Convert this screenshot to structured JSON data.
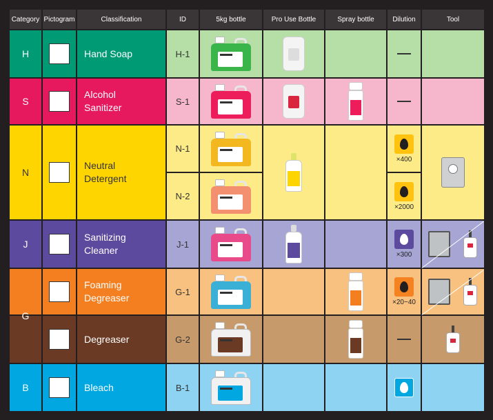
{
  "headers": [
    "Category",
    "Pictogram",
    "Classification",
    "ID",
    "5kg bottle",
    "Pro Use Bottle",
    "Spray bottle",
    "Dilution",
    "Tool"
  ],
  "rows": {
    "h": {
      "category": "H",
      "classification": "Hand Soap",
      "id": "H-1",
      "color": "#009a75",
      "light": "#b5dfa6",
      "jug_color": "#3ab54a"
    },
    "s": {
      "category": "S",
      "classification": "Alcohol\nSanitizer",
      "id": "S-1",
      "color": "#e6185e",
      "light": "#f6b7cd",
      "jug_color": "#ed1c5b"
    },
    "n": {
      "category": "N",
      "classification": "Neutral\nDetergent",
      "id1": "N-1",
      "id2": "N-2",
      "color": "#ffd500",
      "light": "#fdeb88",
      "dilution1": "×400",
      "dilution2": "×2000",
      "jug1_color": "#f3b81f",
      "jug2_color": "#f29070"
    },
    "j": {
      "category": "J",
      "classification": "Sanitizing\nCleaner",
      "id": "J-1",
      "color": "#5b4a9e",
      "light": "#a6a5d4",
      "dilution": "×300",
      "jug_color": "#e84a8a"
    },
    "g1": {
      "classification": "Foaming\nDegreaser",
      "id": "G-1",
      "color": "#f37f21",
      "light": "#f9c17f",
      "dilution": "×20~40",
      "jug_color": "#3ab0d6"
    },
    "g2": {
      "classification": "Degreaser",
      "id": "G-2",
      "color": "#6b3a25",
      "light": "#c79a6c",
      "jug_color": "#f1f1f1"
    },
    "g_category": "G",
    "b": {
      "category": "B",
      "classification": "Bleach",
      "id": "B-1",
      "color": "#00a7e1",
      "light": "#8fd3f2",
      "jug_color": "#f1f1f1"
    }
  },
  "dash": "—",
  "icons": {
    "pictogram": "pictogram-icon",
    "concentrated": "concentrated-drop-icon"
  },
  "colors": {
    "background": "#231f20",
    "header": "#3a3536",
    "concentrated_orange": "#f58220",
    "concentrated_yellow": "#ffc20e",
    "concentrated_purple": "#5b4a9e",
    "concentrated_blue": "#00a7e1"
  }
}
